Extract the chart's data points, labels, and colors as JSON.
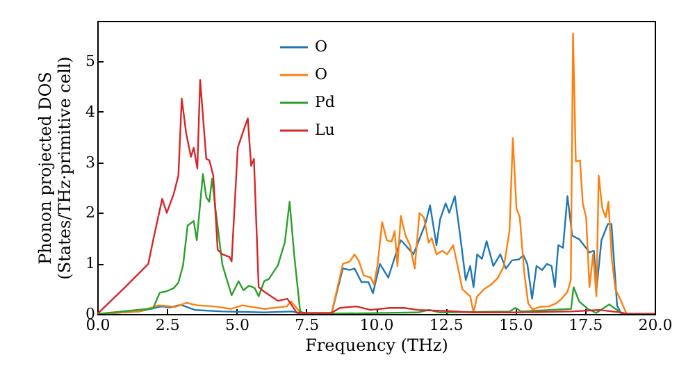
{
  "chart_data": {
    "type": "line",
    "xlabel": "Frequency (THz)",
    "ylabel": "Phonon projected DOS\n(States/THz·primitive cell)",
    "xlim": [
      0,
      20
    ],
    "ylim": [
      0,
      5.8
    ],
    "xticks": [
      {
        "value": 0,
        "label": "0.0"
      },
      {
        "value": 2.5,
        "label": "2.5"
      },
      {
        "value": 5,
        "label": "5.0"
      },
      {
        "value": 7.5,
        "label": "7.5"
      },
      {
        "value": 10,
        "label": "10.0"
      },
      {
        "value": 12.5,
        "label": "12.5"
      },
      {
        "value": 15,
        "label": "15.0"
      },
      {
        "value": 17.5,
        "label": "17.5"
      },
      {
        "value": 20,
        "label": "20.0"
      }
    ],
    "yticks": [
      0,
      1,
      2,
      3,
      4,
      5
    ],
    "grid": false,
    "legend": "top",
    "marker": "none",
    "line_style": "solid",
    "series": [
      {
        "name": "O",
        "color": "#1f77b4",
        "x": [
          0,
          1.5,
          2.3,
          2.6,
          3.0,
          3.5,
          4.5,
          6.0,
          7.0,
          7.3,
          8.4,
          8.81,
          9.06,
          9.23,
          9.48,
          9.73,
          9.89,
          10.14,
          10.44,
          10.72,
          10.89,
          11.06,
          11.34,
          11.47,
          11.77,
          11.94,
          12.17,
          12.3,
          12.5,
          12.63,
          12.83,
          13.02,
          13.22,
          13.38,
          13.5,
          13.63,
          13.8,
          13.97,
          14.21,
          14.46,
          14.66,
          14.88,
          15.13,
          15.29,
          15.43,
          15.6,
          15.76,
          15.96,
          16.13,
          16.3,
          16.42,
          16.54,
          16.71,
          16.87,
          17.04,
          17.29,
          17.46,
          17.66,
          17.82,
          17.92,
          18.09,
          18.32,
          18.45,
          18.65,
          18.8,
          20
        ],
        "values": [
          0,
          0.05,
          0.15,
          0.13,
          0.18,
          0.08,
          0.05,
          0.03,
          0.05,
          0,
          0,
          0.9,
          0.87,
          0.9,
          0.63,
          0.63,
          0.41,
          0.99,
          0.72,
          1.2,
          1.46,
          1.36,
          1.18,
          1.36,
          1.78,
          2.15,
          1.36,
          1.87,
          2.19,
          2.0,
          2.33,
          1.55,
          0.67,
          0.95,
          0.53,
          1.18,
          1.09,
          1.44,
          0.95,
          1.18,
          0.9,
          1.06,
          1.08,
          1.16,
          0.99,
          0.3,
          0.95,
          0.87,
          0.99,
          0.95,
          0.53,
          1.36,
          1.31,
          2.33,
          1.55,
          1.48,
          1.36,
          1.22,
          1.25,
          0.53,
          1.46,
          1.78,
          1.78,
          0.17,
          0,
          0
        ]
      },
      {
        "name": "O",
        "color": "#ff7f0e",
        "x": [
          0,
          1.5,
          2.2,
          2.8,
          3.2,
          3.6,
          4.2,
          4.8,
          5.2,
          6.0,
          6.8,
          6.95,
          7.3,
          7.5,
          8.4,
          8.81,
          9.06,
          9.23,
          9.39,
          9.56,
          9.81,
          9.93,
          10.06,
          10.22,
          10.39,
          10.56,
          10.67,
          10.77,
          10.89,
          11.06,
          11.22,
          11.39,
          11.56,
          11.72,
          11.89,
          12.0,
          12.17,
          12.38,
          12.55,
          12.77,
          12.93,
          13.1,
          13.38,
          13.5,
          13.63,
          13.88,
          14.13,
          14.38,
          14.59,
          14.79,
          14.91,
          15.04,
          15.16,
          15.32,
          15.46,
          15.62,
          15.88,
          16.21,
          16.46,
          16.66,
          16.87,
          16.99,
          17.07,
          17.17,
          17.32,
          17.42,
          17.54,
          17.66,
          17.79,
          17.91,
          17.99,
          18.12,
          18.24,
          18.34,
          18.46,
          18.59,
          18.79,
          18.99,
          20
        ],
        "values": [
          0,
          0.05,
          0.17,
          0.14,
          0.22,
          0.17,
          0.15,
          0.1,
          0.17,
          0.1,
          0.15,
          0.25,
          0.02,
          0,
          0,
          0.99,
          1.04,
          1.18,
          1.04,
          0.76,
          0.72,
          0.58,
          0.99,
          1.82,
          1.46,
          1.43,
          1.64,
          0.95,
          1.94,
          1.55,
          1.36,
          0.9,
          2.0,
          1.91,
          1.41,
          1.5,
          1.18,
          1.25,
          1.18,
          1.36,
          0.95,
          0.49,
          0.35,
          0.03,
          0.35,
          0.49,
          0.58,
          0.72,
          0.95,
          1.64,
          3.48,
          2.09,
          1.91,
          0.81,
          0.21,
          0.09,
          0.14,
          0.15,
          0.21,
          0.3,
          0.44,
          0.67,
          5.55,
          3.02,
          3.04,
          2.19,
          1.91,
          0.53,
          1.18,
          0.35,
          2.74,
          2.09,
          1.91,
          2.22,
          1.09,
          0.49,
          0.26,
          0,
          0
        ]
      },
      {
        "name": "Pd",
        "color": "#2ca02c",
        "x": [
          0,
          2.0,
          2.24,
          2.49,
          2.74,
          2.91,
          3.08,
          3.24,
          3.46,
          3.57,
          3.79,
          3.91,
          4.02,
          4.12,
          4.24,
          4.49,
          4.82,
          5.07,
          5.24,
          5.45,
          5.65,
          5.79,
          5.99,
          6.15,
          6.48,
          6.73,
          6.9,
          7.07,
          7.28,
          7.5,
          11.5,
          11.9,
          12.3,
          14.8,
          15.0,
          15.2,
          17.0,
          17.09,
          17.29,
          17.6,
          17.9,
          18.37,
          18.8,
          19,
          20
        ],
        "values": [
          0,
          0.11,
          0.42,
          0.45,
          0.51,
          0.62,
          0.97,
          1.75,
          1.84,
          1.46,
          2.77,
          2.31,
          2.22,
          2.68,
          2.08,
          0.97,
          0.37,
          0.65,
          0.47,
          0.56,
          0.51,
          0.35,
          0.65,
          0.69,
          0.96,
          1.42,
          2.22,
          1.14,
          0.05,
          0,
          0.03,
          0.08,
          0.03,
          0.05,
          0.12,
          0.05,
          0.1,
          0.53,
          0.25,
          0.1,
          0.02,
          0.19,
          0.02,
          0,
          0
        ]
      },
      {
        "name": "Lu",
        "color": "#d62728",
        "x": [
          0,
          1.0,
          1.83,
          2.0,
          2.33,
          2.49,
          2.74,
          2.91,
          3.03,
          3.19,
          3.36,
          3.46,
          3.59,
          3.69,
          3.91,
          4.02,
          4.16,
          4.32,
          4.49,
          4.74,
          4.82,
          5.04,
          5.24,
          5.4,
          5.52,
          5.62,
          5.79,
          5.99,
          6.48,
          6.82,
          7.15,
          7.5,
          8.4,
          8.7,
          9.3,
          9.8,
          10.5,
          11.0,
          11.5,
          12.5,
          13.5,
          15.0,
          17.0,
          18.0,
          18.8,
          19,
          20
        ],
        "values": [
          0,
          0.53,
          0.99,
          1.45,
          2.28,
          2.0,
          2.37,
          2.74,
          4.26,
          3.57,
          3.11,
          3.29,
          2.88,
          4.63,
          3.07,
          3.04,
          2.74,
          1.27,
          1.18,
          1.13,
          1.04,
          3.29,
          3.62,
          3.87,
          2.93,
          3.07,
          0.53,
          0.44,
          0.26,
          0.3,
          0.03,
          0.02,
          0.02,
          0.12,
          0.15,
          0.08,
          0.12,
          0.12,
          0.08,
          0.06,
          0.03,
          0.03,
          0.05,
          0.08,
          0.03,
          0,
          0
        ]
      }
    ]
  }
}
